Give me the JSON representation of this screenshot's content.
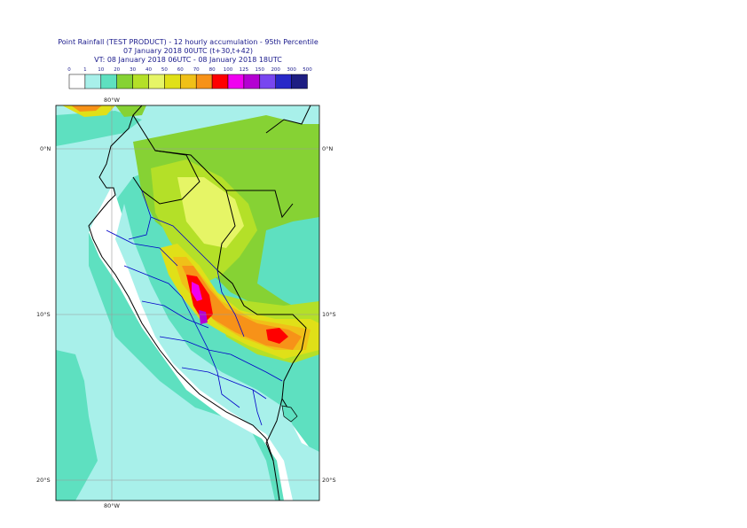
{
  "title": {
    "line1": "Point Rainfall (TEST PRODUCT) - 12 hourly accumulation - 95th Percentile",
    "line2": "07 January 2018 00UTC (t+30,t+42)",
    "line3": "VT: 08 January 2018 06UTC - 08 January 2018 18UTC"
  },
  "legend": {
    "ticks": [
      "0",
      "1",
      "10",
      "20",
      "30",
      "40",
      "50",
      "60",
      "70",
      "80",
      "100",
      "125",
      "150",
      "200",
      "300",
      "500"
    ],
    "colors": [
      "#ffffff",
      "#a8f0ea",
      "#5ee0c0",
      "#86d234",
      "#b4e028",
      "#e6f566",
      "#e0e018",
      "#f0c018",
      "#f79218",
      "#ff0000",
      "#f000f0",
      "#b400d2",
      "#7846f0",
      "#2828c8",
      "#1e1e82"
    ]
  },
  "map": {
    "lat_labels": [
      "0°N",
      "10°S",
      "20°S"
    ],
    "lon_labels": [
      "80°W",
      "80°W"
    ],
    "colors": {
      "land": "#ffffff",
      "light_cyan": "#a8f0ea",
      "teal": "#5ee0c0",
      "green": "#86d234",
      "lime": "#b4e028",
      "pale_yellow": "#e6f566",
      "yellow": "#e0e018",
      "orange": "#f79218",
      "gold": "#f0c018",
      "red": "#ff0000",
      "magenta": "#f000f0",
      "purple": "#b400d2",
      "border": "#000000",
      "region_border": "#0000c8",
      "grid": "#9a9a9a"
    }
  }
}
